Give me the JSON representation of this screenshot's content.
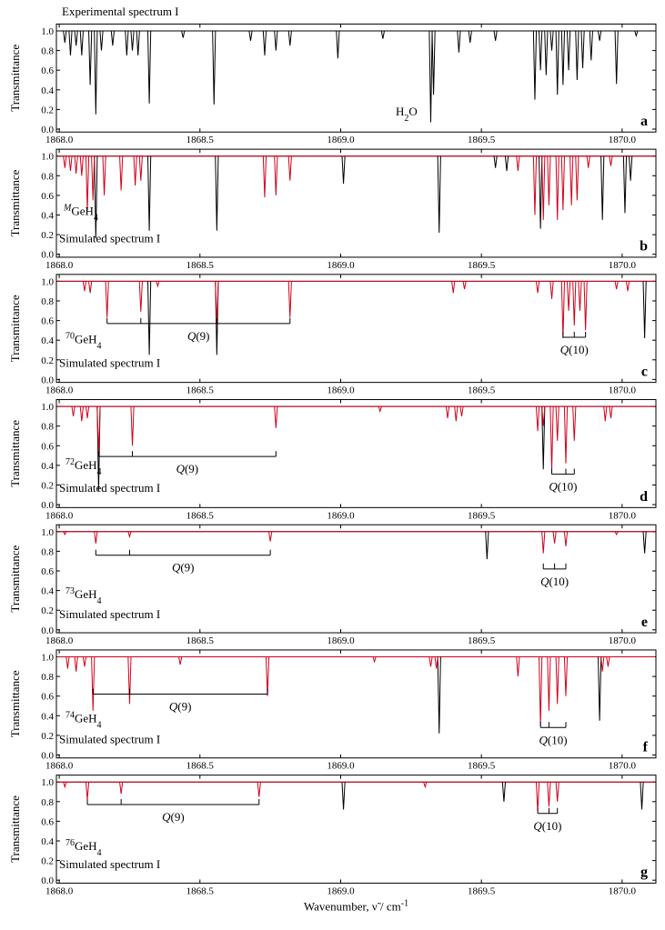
{
  "chart_data": [
    {
      "type": "spectrum",
      "label": "a",
      "y_label": "Transmittance",
      "notes": [
        [
          {
            "text": "Experimental spectrum I"
          }
        ],
        [
          {
            "text": "H"
          },
          {
            "text": "2",
            "sub": true
          },
          {
            "text": "O"
          }
        ]
      ],
      "xlim": [
        1867.99,
        1870.12
      ],
      "ylim": [
        -0.03,
        1.07
      ],
      "xticks": [
        {
          "value": 1868.0,
          "label": "1868.0"
        },
        {
          "value": 1868.5,
          "label": "1868.5"
        },
        {
          "value": 1869.0,
          "label": "1869.0"
        },
        {
          "value": 1869.5,
          "label": "1869.5"
        },
        {
          "value": 1870.0,
          "label": "1870.0"
        }
      ],
      "yticks": [
        {
          "value": 0,
          "label": "0.0"
        },
        0.2,
        0.4,
        0.6,
        0.8,
        {
          "value": 1,
          "label": "1.0"
        }
      ],
      "series": [
        {
          "color": "#000000",
          "x": [
            1868.02,
            1868.04,
            1868.06,
            1868.08,
            1868.11,
            1868.13,
            1868.15,
            1868.19,
            1868.24,
            1868.26,
            1868.28,
            1868.32,
            1868.44,
            1868.55,
            1868.68,
            1868.73,
            1868.77,
            1868.82,
            1868.99,
            1869.15,
            1869.32,
            1869.33,
            1869.42,
            1869.46,
            1869.55,
            1869.69,
            1869.71,
            1869.73,
            1869.75,
            1869.77,
            1869.79,
            1869.81,
            1869.84,
            1869.86,
            1869.89,
            1869.92,
            1869.98,
            1870.05
          ],
          "values": [
            0.88,
            0.75,
            0.85,
            0.75,
            0.45,
            0.15,
            0.8,
            0.85,
            0.75,
            0.8,
            0.75,
            0.26,
            0.93,
            0.25,
            0.9,
            0.75,
            0.8,
            0.85,
            0.72,
            0.92,
            0.07,
            0.35,
            0.78,
            0.88,
            0.9,
            0.3,
            0.6,
            0.55,
            0.8,
            0.35,
            0.45,
            0.6,
            0.5,
            0.62,
            0.7,
            0.9,
            0.46,
            0.95
          ]
        }
      ],
      "q_branches": []
    },
    {
      "type": "spectrum",
      "label": "b",
      "y_label": "Transmittance",
      "notes": [
        [
          {
            "text": "M",
            "sup": true,
            "italic": true
          },
          {
            "text": "GeH"
          },
          {
            "text": "4",
            "sub": true
          }
        ],
        [
          {
            "text": "Simulated spectrum I"
          }
        ]
      ],
      "xlim": [
        1867.99,
        1870.12
      ],
      "ylim": [
        -0.03,
        1.07
      ],
      "xticks": [
        {
          "value": 1868.0,
          "label": "1868.0"
        },
        {
          "value": 1868.5,
          "label": "1868.5"
        },
        {
          "value": 1869.0,
          "label": "1869.0"
        },
        {
          "value": 1869.5,
          "label": "1869.5"
        },
        {
          "value": 1870.0,
          "label": "1870.0"
        }
      ],
      "yticks": [
        {
          "value": 0,
          "label": "0.0"
        },
        0.2,
        0.4,
        0.6,
        0.8,
        {
          "value": 1,
          "label": "1.0"
        }
      ],
      "series": [
        {
          "color": "#000000",
          "x": [
            1868.13,
            1868.32,
            1868.56,
            1869.01,
            1869.35,
            1869.55,
            1869.59,
            1869.71,
            1869.93,
            1870.01,
            1870.03
          ],
          "values": [
            0.16,
            0.24,
            0.24,
            0.72,
            0.22,
            0.88,
            0.85,
            0.26,
            0.35,
            0.42,
            0.75
          ]
        },
        {
          "color": "#d0021b",
          "x": [
            1868.02,
            1868.04,
            1868.06,
            1868.08,
            1868.1,
            1868.12,
            1868.16,
            1868.22,
            1868.27,
            1868.29,
            1868.73,
            1868.77,
            1868.82,
            1869.63,
            1869.69,
            1869.72,
            1869.74,
            1869.77,
            1869.79,
            1869.82,
            1869.84,
            1869.88,
            1869.96
          ],
          "values": [
            0.88,
            0.85,
            0.82,
            0.8,
            0.45,
            0.55,
            0.6,
            0.65,
            0.7,
            0.75,
            0.58,
            0.6,
            0.75,
            0.85,
            0.4,
            0.35,
            0.5,
            0.35,
            0.45,
            0.5,
            0.55,
            0.88,
            0.9
          ]
        }
      ],
      "q_branches": []
    },
    {
      "type": "spectrum",
      "label": "c",
      "y_label": "Transmittance",
      "notes": [
        [
          {
            "text": "70",
            "sup": true
          },
          {
            "text": "GeH"
          },
          {
            "text": "4",
            "sub": true
          }
        ],
        [
          {
            "text": "Simulated spectrum I"
          }
        ]
      ],
      "xlim": [
        1867.99,
        1870.12
      ],
      "ylim": [
        -0.03,
        1.07
      ],
      "xticks": [
        {
          "value": 1868.0,
          "label": "1868.0"
        },
        {
          "value": 1868.5,
          "label": "1868.5"
        },
        {
          "value": 1869.0,
          "label": "1869.0"
        },
        {
          "value": 1869.5,
          "label": "1869.5"
        },
        {
          "value": 1870.0,
          "label": "1870.0"
        }
      ],
      "yticks": [
        {
          "value": 0,
          "label": "0.0"
        },
        0.2,
        0.4,
        0.6,
        0.8,
        {
          "value": 1,
          "label": "1.0"
        }
      ],
      "series": [
        {
          "color": "#000000",
          "x": [
            1868.32,
            1868.56,
            1870.08
          ],
          "values": [
            0.25,
            0.25,
            0.42
          ]
        },
        {
          "color": "#d0021b",
          "x": [
            1868.09,
            1868.11,
            1868.17,
            1868.29,
            1868.35,
            1868.56,
            1868.82,
            1869.4,
            1869.44,
            1869.7,
            1869.75,
            1869.79,
            1869.81,
            1869.83,
            1869.85,
            1869.87,
            1869.98,
            1870.02
          ],
          "values": [
            0.9,
            0.88,
            0.63,
            0.69,
            0.95,
            0.55,
            0.63,
            0.88,
            0.92,
            0.88,
            0.82,
            0.42,
            0.7,
            0.55,
            0.7,
            0.5,
            0.92,
            0.9
          ]
        }
      ],
      "q_branches": [
        {
          "label": [
            {
              "text": "Q",
              "italic": true
            },
            {
              "text": "(9)"
            }
          ],
          "x": [
            1868.17,
            1868.29,
            1868.56,
            1868.82
          ]
        },
        {
          "label": [
            {
              "text": "Q",
              "italic": true
            },
            {
              "text": "(10)"
            }
          ],
          "x": [
            1869.79,
            1869.83,
            1869.87
          ]
        }
      ]
    },
    {
      "type": "spectrum",
      "label": "d",
      "y_label": "Transmittance",
      "notes": [
        [
          {
            "text": "72",
            "sup": true
          },
          {
            "text": "GeH"
          },
          {
            "text": "4",
            "sub": true
          }
        ],
        [
          {
            "text": "Simulated spectrum I"
          }
        ]
      ],
      "xlim": [
        1867.99,
        1870.12
      ],
      "ylim": [
        -0.03,
        1.07
      ],
      "xticks": [
        {
          "value": 1868.0,
          "label": "1868.0"
        },
        {
          "value": 1868.5,
          "label": "1868.5"
        },
        {
          "value": 1869.0,
          "label": "1869.0"
        },
        {
          "value": 1869.5,
          "label": "1869.5"
        },
        {
          "value": 1870.0,
          "label": "1870.0"
        }
      ],
      "yticks": [
        {
          "value": 0,
          "label": "0.0"
        },
        0.2,
        0.4,
        0.6,
        0.8,
        {
          "value": 1,
          "label": "1.0"
        }
      ],
      "series": [
        {
          "color": "#000000",
          "x": [
            1868.14,
            1869.72
          ],
          "values": [
            0.14,
            0.36
          ]
        },
        {
          "color": "#d0021b",
          "x": [
            1868.05,
            1868.08,
            1868.1,
            1868.14,
            1868.26,
            1868.77,
            1869.14,
            1869.38,
            1869.41,
            1869.43,
            1869.7,
            1869.72,
            1869.75,
            1869.77,
            1869.8,
            1869.83,
            1869.94,
            1869.96
          ],
          "values": [
            0.9,
            0.85,
            0.88,
            0.5,
            0.6,
            0.78,
            0.95,
            0.88,
            0.85,
            0.9,
            0.75,
            0.8,
            0.35,
            0.65,
            0.42,
            0.65,
            0.85,
            0.88
          ]
        }
      ],
      "q_branches": [
        {
          "label": [
            {
              "text": "Q",
              "italic": true
            },
            {
              "text": "(9)"
            }
          ],
          "x": [
            1868.14,
            1868.26,
            1868.77
          ]
        },
        {
          "label": [
            {
              "text": "Q",
              "italic": true
            },
            {
              "text": "(10)"
            }
          ],
          "x": [
            1869.75,
            1869.8,
            1869.83
          ]
        }
      ]
    },
    {
      "type": "spectrum",
      "label": "e",
      "y_label": "Transmittance",
      "notes": [
        [
          {
            "text": "73",
            "sup": true
          },
          {
            "text": "GeH"
          },
          {
            "text": "4",
            "sub": true
          }
        ],
        [
          {
            "text": "Simulated spectrum I"
          }
        ]
      ],
      "xlim": [
        1867.99,
        1870.12
      ],
      "ylim": [
        -0.03,
        1.07
      ],
      "xticks": [
        {
          "value": 1868.0,
          "label": "1868.0"
        },
        {
          "value": 1868.5,
          "label": "1868.5"
        },
        {
          "value": 1869.0,
          "label": "1869.0"
        },
        {
          "value": 1869.5,
          "label": "1869.5"
        },
        {
          "value": 1870.0,
          "label": "1870.0"
        }
      ],
      "yticks": [
        {
          "value": 0,
          "label": "0.0"
        },
        0.2,
        0.4,
        0.6,
        0.8,
        {
          "value": 1,
          "label": "1.0"
        }
      ],
      "series": [
        {
          "color": "#000000",
          "x": [
            1869.52,
            1870.08
          ],
          "values": [
            0.72,
            0.78
          ]
        },
        {
          "color": "#d0021b",
          "x": [
            1868.02,
            1868.13,
            1868.25,
            1868.75,
            1869.72,
            1869.76,
            1869.8,
            1869.98
          ],
          "values": [
            0.97,
            0.88,
            0.95,
            0.9,
            0.78,
            0.88,
            0.85,
            0.97
          ]
        }
      ],
      "q_branches": [
        {
          "label": [
            {
              "text": "Q",
              "italic": true
            },
            {
              "text": "(9)"
            }
          ],
          "x": [
            1868.13,
            1868.25,
            1868.75
          ]
        },
        {
          "label": [
            {
              "text": "Q",
              "italic": true
            },
            {
              "text": "(10)"
            }
          ],
          "x": [
            1869.72,
            1869.76,
            1869.8
          ]
        }
      ]
    },
    {
      "type": "spectrum",
      "label": "f",
      "y_label": "Transmittance",
      "notes": [
        [
          {
            "text": "74",
            "sup": true
          },
          {
            "text": "GeH"
          },
          {
            "text": "4",
            "sub": true
          }
        ],
        [
          {
            "text": "Simulated spectrum I"
          }
        ]
      ],
      "xlim": [
        1867.99,
        1870.12
      ],
      "ylim": [
        -0.03,
        1.07
      ],
      "xticks": [
        {
          "value": 1868.0,
          "label": "1868.0"
        },
        {
          "value": 1868.5,
          "label": "1868.5"
        },
        {
          "value": 1869.0,
          "label": "1869.0"
        },
        {
          "value": 1869.5,
          "label": "1869.5"
        },
        {
          "value": 1870.0,
          "label": "1870.0"
        }
      ],
      "yticks": [
        {
          "value": 0,
          "label": "0.0"
        },
        0.2,
        0.4,
        0.6,
        0.8,
        {
          "value": 1,
          "label": "1.0"
        }
      ],
      "series": [
        {
          "color": "#000000",
          "x": [
            1869.35,
            1869.92
          ],
          "values": [
            0.22,
            0.35
          ]
        },
        {
          "color": "#d0021b",
          "x": [
            1868.03,
            1868.06,
            1868.09,
            1868.12,
            1868.25,
            1868.43,
            1868.74,
            1869.12,
            1869.32,
            1869.34,
            1869.63,
            1869.71,
            1869.74,
            1869.77,
            1869.8,
            1869.93,
            1869.95
          ],
          "values": [
            0.88,
            0.85,
            0.9,
            0.45,
            0.52,
            0.92,
            0.6,
            0.95,
            0.9,
            0.88,
            0.8,
            0.3,
            0.45,
            0.52,
            0.6,
            0.85,
            0.9
          ]
        }
      ],
      "q_branches": [
        {
          "label": [
            {
              "text": "Q",
              "italic": true
            },
            {
              "text": "(9)"
            }
          ],
          "x": [
            1868.12,
            1868.25,
            1868.74
          ]
        },
        {
          "label": [
            {
              "text": "Q",
              "italic": true
            },
            {
              "text": "(10)"
            }
          ],
          "x": [
            1869.71,
            1869.74,
            1869.8
          ]
        }
      ]
    },
    {
      "type": "spectrum",
      "label": "g",
      "y_label": "Transmittance",
      "notes": [
        [
          {
            "text": "76",
            "sup": true
          },
          {
            "text": "GeH"
          },
          {
            "text": "4",
            "sub": true
          }
        ],
        [
          {
            "text": "Simulated spectrum I"
          }
        ]
      ],
      "x_label": [
        {
          "text": "Wavenumber, ν̃ / cm"
        },
        {
          "text": "-1",
          "sup": true
        }
      ],
      "xlim": [
        1867.99,
        1870.12
      ],
      "ylim": [
        -0.03,
        1.07
      ],
      "xticks": [
        {
          "value": 1868.0,
          "label": "1868.0"
        },
        {
          "value": 1868.5,
          "label": "1868.5"
        },
        {
          "value": 1869.0,
          "label": "1869.0"
        },
        {
          "value": 1869.5,
          "label": "1869.5"
        },
        {
          "value": 1870.0,
          "label": "1870.0"
        }
      ],
      "yticks": [
        {
          "value": 0,
          "label": "0.0"
        },
        0.2,
        0.4,
        0.6,
        0.8,
        {
          "value": 1,
          "label": "1.0"
        }
      ],
      "series": [
        {
          "color": "#000000",
          "x": [
            1869.01,
            1869.58,
            1870.07
          ],
          "values": [
            0.72,
            0.8,
            0.72
          ]
        },
        {
          "color": "#d0021b",
          "x": [
            1868.02,
            1868.1,
            1868.22,
            1868.71,
            1869.3,
            1869.7,
            1869.74,
            1869.77
          ],
          "values": [
            0.95,
            0.82,
            0.88,
            0.85,
            0.95,
            0.7,
            0.75,
            0.8
          ]
        }
      ],
      "q_branches": [
        {
          "label": [
            {
              "text": "Q",
              "italic": true
            },
            {
              "text": "(9)"
            }
          ],
          "x": [
            1868.1,
            1868.22,
            1868.71
          ]
        },
        {
          "label": [
            {
              "text": "Q",
              "italic": true
            },
            {
              "text": "(10)"
            }
          ],
          "x": [
            1869.7,
            1869.74,
            1869.77
          ]
        }
      ]
    }
  ]
}
